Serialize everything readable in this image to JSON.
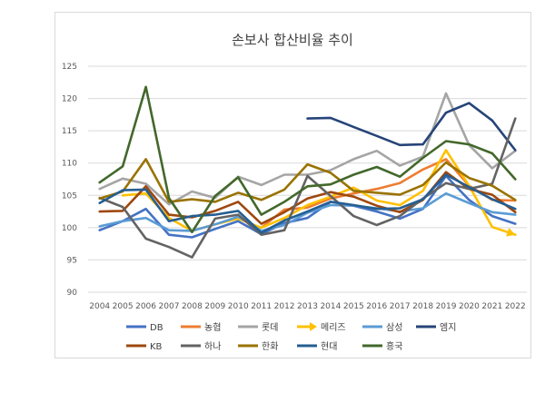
{
  "chart_data": {
    "type": "line",
    "title": "손보사 합산비율 추이",
    "xlabel": "",
    "ylabel": "",
    "x": [
      2004,
      2005,
      2006,
      2007,
      2008,
      2009,
      2010,
      2011,
      2012,
      2013,
      2014,
      2015,
      2016,
      2017,
      2018,
      2019,
      2020,
      2021,
      2022
    ],
    "ylim": [
      90,
      125
    ],
    "yticks": [
      90,
      95,
      100,
      105,
      110,
      115,
      120,
      125
    ],
    "grid": "horizontal",
    "legend_position": "bottom",
    "series": [
      {
        "name": "DB",
        "color": "#4472c4",
        "values": [
          99.6,
          101.0,
          102.9,
          98.9,
          98.5,
          99.8,
          101.0,
          99.0,
          100.7,
          101.5,
          104.0,
          103.4,
          102.5,
          101.4,
          102.9,
          108.0,
          104.3,
          101.8,
          100.6
        ]
      },
      {
        "name": "농협",
        "color": "#ed7d31",
        "values": [
          null,
          null,
          null,
          null,
          null,
          null,
          null,
          100.0,
          102.8,
          103.1,
          104.5,
          105.3,
          106.0,
          106.9,
          109.0,
          110.6,
          106.5,
          104.3,
          104.2
        ]
      },
      {
        "name": "롯데",
        "color": "#a5a5a5",
        "values": [
          106.0,
          107.6,
          106.8,
          103.6,
          105.6,
          104.6,
          107.9,
          106.6,
          108.2,
          108.2,
          108.9,
          110.6,
          111.9,
          109.6,
          111.0,
          120.8,
          112.8,
          109.2,
          111.9
        ]
      },
      {
        "name": "메리즈",
        "color": "#ffc000",
        "marker": "arrow",
        "values": [
          null,
          105.0,
          105.3,
          101.5,
          99.5,
          100.5,
          101.4,
          100.0,
          101.5,
          103.5,
          104.8,
          106.2,
          104.2,
          103.5,
          105.7,
          112.0,
          106.5,
          100.1,
          98.9
        ]
      },
      {
        "name": "삼성",
        "color": "#5b9bd5",
        "values": [
          100.2,
          101.0,
          101.5,
          99.6,
          99.5,
          100.5,
          101.7,
          99.5,
          100.4,
          102.3,
          103.5,
          103.4,
          103.0,
          102.5,
          103.0,
          105.3,
          103.8,
          102.4,
          102.0
        ]
      },
      {
        "name": "엠지",
        "color": "#264478",
        "values": [
          null,
          null,
          null,
          null,
          null,
          null,
          null,
          null,
          null,
          116.9,
          117.0,
          115.6,
          114.2,
          112.8,
          112.9,
          117.8,
          119.3,
          116.6,
          112.0
        ]
      },
      {
        "name": "KB",
        "color": "#9e480e",
        "values": [
          102.5,
          102.6,
          106.4,
          102.0,
          101.6,
          102.6,
          104.0,
          100.6,
          102.4,
          104.5,
          105.5,
          104.8,
          103.4,
          102.4,
          104.3,
          108.6,
          106.0,
          105.1,
          102.4
        ]
      },
      {
        "name": "하나",
        "color": "#636363",
        "values": [
          104.6,
          103.2,
          98.3,
          97.0,
          95.4,
          101.4,
          102.0,
          98.9,
          99.6,
          108.0,
          104.9,
          101.8,
          100.4,
          101.8,
          104.5,
          106.9,
          106.0,
          106.8,
          116.9
        ]
      },
      {
        "name": "한화",
        "color": "#997300",
        "values": [
          104.5,
          105.6,
          110.6,
          104.0,
          104.4,
          104.0,
          105.4,
          104.3,
          105.9,
          109.8,
          108.5,
          105.7,
          105.4,
          105.1,
          106.6,
          110.1,
          107.7,
          106.5,
          104.3
        ]
      },
      {
        "name": "현대",
        "color": "#255e91",
        "values": [
          103.8,
          105.8,
          105.9,
          101.0,
          101.8,
          102.0,
          102.6,
          99.2,
          101.1,
          102.5,
          104.0,
          103.5,
          102.9,
          103.0,
          104.4,
          108.2,
          106.3,
          104.4,
          102.9
        ]
      },
      {
        "name": "흥국",
        "color": "#43682b",
        "values": [
          107.0,
          109.5,
          121.8,
          104.6,
          99.3,
          104.9,
          107.8,
          102.0,
          104.0,
          106.4,
          106.7,
          108.2,
          109.4,
          107.9,
          110.8,
          113.4,
          112.9,
          111.5,
          107.5
        ]
      }
    ]
  }
}
